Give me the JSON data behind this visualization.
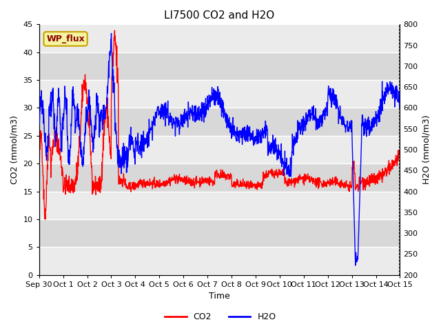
{
  "title": "LI7500 CO2 and H2O",
  "xlabel": "Time",
  "ylabel_left": "CO2 (mmol/m3)",
  "ylabel_right": "H2O (mmol/m3)",
  "ylim_left": [
    0,
    45
  ],
  "ylim_right": [
    200,
    800
  ],
  "xtick_labels": [
    "Sep 30",
    "Oct 1",
    "Oct 2",
    "Oct 3",
    "Oct 4",
    "Oct 5",
    "Oct 6",
    "Oct 7",
    "Oct 8",
    "Oct 9",
    "Oct 10",
    "Oct 11",
    "Oct 12",
    "Oct 13",
    "Oct 14",
    "Oct 15"
  ],
  "yticks_left": [
    0,
    5,
    10,
    15,
    20,
    25,
    30,
    35,
    40,
    45
  ],
  "yticks_right": [
    200,
    250,
    300,
    350,
    400,
    450,
    500,
    550,
    600,
    650,
    700,
    750,
    800
  ],
  "legend_labels": [
    "CO2",
    "H2O"
  ],
  "legend_colors": [
    "red",
    "blue"
  ],
  "annotation_text": "WP_flux",
  "annotation_bbox_facecolor": "#f5f5a0",
  "annotation_bbox_edgecolor": "#c8a000",
  "bg_color": "#ffffff",
  "plot_bg_color": "#ffffff",
  "band_color_light": "#ebebeb",
  "band_color_dark": "#d8d8d8",
  "title_fontsize": 11,
  "axis_fontsize": 9,
  "tick_fontsize": 8,
  "legend_fontsize": 9,
  "annotation_fontsize": 9,
  "co2_color": "red",
  "h2o_color": "blue",
  "linewidth": 1.0
}
